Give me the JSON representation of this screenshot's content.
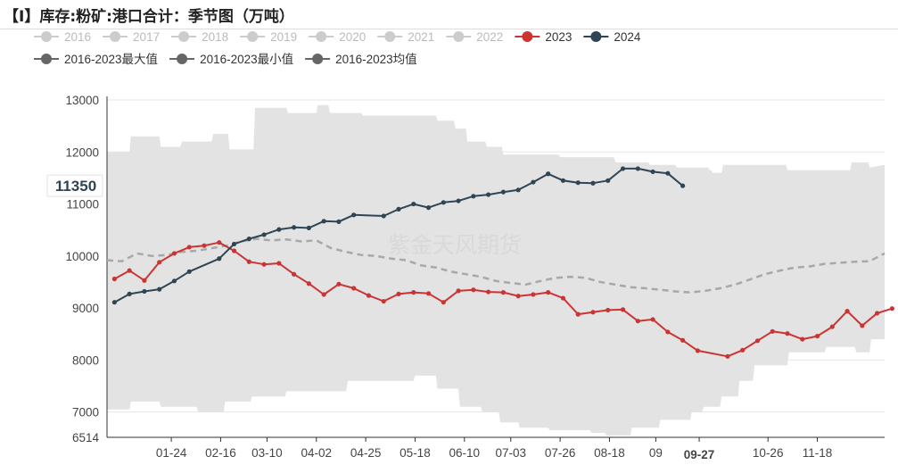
{
  "title": "【I】库存:粉矿:港口合计：季节图（万吨）",
  "watermark": "紫金天风期货",
  "legend": [
    {
      "label": "2016",
      "color": "#cccccc",
      "text_color": "#bbbbbb"
    },
    {
      "label": "2017",
      "color": "#cccccc",
      "text_color": "#bbbbbb"
    },
    {
      "label": "2018",
      "color": "#cccccc",
      "text_color": "#bbbbbb"
    },
    {
      "label": "2019",
      "color": "#cccccc",
      "text_color": "#bbbbbb"
    },
    {
      "label": "2020",
      "color": "#cccccc",
      "text_color": "#bbbbbb"
    },
    {
      "label": "2021",
      "color": "#cccccc",
      "text_color": "#bbbbbb"
    },
    {
      "label": "2022",
      "color": "#cccccc",
      "text_color": "#bbbbbb"
    },
    {
      "label": "2023",
      "color": "#cc3333",
      "text_color": "#333333"
    },
    {
      "label": "2024",
      "color": "#2f4554",
      "text_color": "#333333"
    },
    {
      "label": "2016-2023最大值",
      "color": "#666666",
      "text_color": "#333333"
    },
    {
      "label": "2016-2023最小值",
      "color": "#666666",
      "text_color": "#333333"
    },
    {
      "label": "2016-2023均值",
      "color": "#666666",
      "text_color": "#333333"
    }
  ],
  "chart_data": {
    "type": "line",
    "title": "【I】库存:粉矿:港口合计：季节图（万吨）",
    "ylim": [
      6514,
      13000
    ],
    "y_ticks": [
      6514,
      7000,
      8000,
      9000,
      10000,
      11000,
      12000,
      13000
    ],
    "x_ticks": [
      "01-24",
      "02-16",
      "03-10",
      "04-02",
      "04-25",
      "05-18",
      "06-10",
      "07-03",
      "07-26",
      "08-18",
      "09",
      "09-27",
      "10-26",
      "11-18"
    ],
    "x_tick_weeks": [
      4.3,
      7.6,
      10.7,
      14.0,
      17.3,
      20.6,
      23.9,
      27.0,
      30.3,
      33.6,
      36.7,
      39.6,
      44.2,
      47.5
    ],
    "highlight_tick": "09-27",
    "x_range_weeks": [
      0,
      52
    ],
    "y_marker": {
      "value": 11350,
      "label": "11350"
    },
    "series": [
      {
        "name": "2016-2023最大值",
        "weeks": [
          0,
          1.5,
          1.6,
          3.5,
          3.6,
          4.9,
          5.0,
          7.0,
          7.1,
          8.1,
          8.2,
          9.8,
          9.9,
          12.0,
          12.1,
          14.0,
          14.1,
          14.8,
          14.9,
          17.0,
          17.1,
          22.0,
          22.1,
          23.2,
          23.3,
          24.0,
          24.1,
          25.3,
          25.4,
          26.4,
          26.5,
          30.2,
          30.3,
          33.9,
          34.0,
          36.2,
          36.3,
          38.0,
          38.1,
          40.2,
          40.3,
          40.4,
          40.5,
          41.1,
          41.2,
          43.2,
          43.3,
          45.4,
          45.5,
          47.4,
          47.5,
          49.7,
          49.8,
          50.9,
          51.0,
          52.0
        ],
        "values": [
          12000,
          12000,
          12300,
          12300,
          12100,
          12100,
          12200,
          12200,
          12350,
          12350,
          12050,
          12050,
          12850,
          12850,
          12750,
          12750,
          12900,
          12900,
          12750,
          12750,
          12700,
          12700,
          12600,
          12600,
          12450,
          12450,
          12200,
          12200,
          12100,
          12100,
          11950,
          11950,
          11900,
          11900,
          11800,
          11800,
          11750,
          11750,
          11700,
          11700,
          11650,
          11650,
          11600,
          11600,
          11750,
          11750,
          11750,
          11750,
          11650,
          11650,
          11650,
          11650,
          11800,
          11800,
          11700,
          11750
        ]
      },
      {
        "name": "2016-2023最小值",
        "weeks": [
          0,
          1.5,
          1.6,
          3.5,
          3.6,
          6.0,
          6.1,
          7.8,
          7.9,
          9.6,
          9.7,
          11.9,
          12.0,
          16.0,
          16.1,
          20.5,
          20.6,
          22.0,
          22.1,
          23.5,
          23.6,
          25.0,
          25.1,
          26.2,
          26.3,
          27.5,
          27.6,
          29.5,
          29.6,
          32.3,
          32.4,
          33.3,
          33.4,
          35.0,
          35.1,
          36.9,
          37.0,
          39.0,
          39.1,
          39.8,
          39.9,
          41.0,
          41.1,
          42.2,
          42.3,
          43.2,
          43.3,
          45.5,
          45.6,
          48.0,
          48.1,
          50.0,
          50.1,
          51.0,
          51.1,
          52.0
        ],
        "values": [
          7050,
          7050,
          7200,
          7200,
          7100,
          7100,
          7000,
          7000,
          7200,
          7200,
          7300,
          7300,
          7400,
          7400,
          7600,
          7600,
          7700,
          7700,
          7450,
          7450,
          7100,
          7100,
          7000,
          7000,
          6800,
          6800,
          6700,
          6700,
          6650,
          6650,
          6600,
          6600,
          6550,
          6550,
          6700,
          6700,
          6850,
          6850,
          7000,
          7000,
          7100,
          7100,
          7300,
          7300,
          7600,
          7600,
          7900,
          7900,
          8150,
          8150,
          8250,
          8250,
          8150,
          8150,
          8400,
          8400
        ]
      },
      {
        "name": "2016-2023均值",
        "weeks": [
          0,
          1,
          2,
          3,
          4,
          5,
          6,
          7,
          8,
          9,
          10,
          11,
          12,
          13,
          14,
          15,
          16,
          17,
          18,
          19,
          20,
          21,
          22,
          23,
          24,
          25,
          26,
          27,
          28,
          29,
          30,
          31,
          32,
          33,
          34,
          35,
          36,
          37,
          38,
          39,
          40,
          41,
          42,
          43,
          44,
          45,
          46,
          47,
          48,
          49,
          50,
          51,
          52
        ],
        "values": [
          9920,
          9900,
          10050,
          10000,
          10020,
          10080,
          10100,
          10150,
          10200,
          10280,
          10330,
          10300,
          10320,
          10280,
          10300,
          10150,
          10080,
          10020,
          10000,
          9950,
          9920,
          9820,
          9780,
          9700,
          9650,
          9600,
          9520,
          9480,
          9450,
          9520,
          9580,
          9600,
          9580,
          9500,
          9450,
          9400,
          9380,
          9350,
          9320,
          9300,
          9330,
          9380,
          9450,
          9550,
          9650,
          9720,
          9780,
          9800,
          9850,
          9870,
          9890,
          9900,
          10050
        ]
      },
      {
        "name": "2023",
        "weeks": [
          0.5,
          1.5,
          2.5,
          3.5,
          4.5,
          5.5,
          6.5,
          7.5,
          8.5,
          9.5,
          10.5,
          11.5,
          12.5,
          13.5,
          14.5,
          15.5,
          16.5,
          17.5,
          18.5,
          19.5,
          20.5,
          21.5,
          22.5,
          23.5,
          24.5,
          25.5,
          26.5,
          27.5,
          28.5,
          29.5,
          30.5,
          31.5,
          32.5,
          33.5,
          34.5,
          35.5,
          36.5,
          37.5,
          38.5,
          39.5,
          41.5,
          42.5,
          43.5,
          44.5,
          45.5,
          46.5,
          47.5,
          48.5,
          49.5,
          50.5,
          51.5,
          52.5
        ],
        "values": [
          9560,
          9720,
          9530,
          9880,
          10050,
          10170,
          10200,
          10260,
          10100,
          9890,
          9840,
          9860,
          9650,
          9470,
          9260,
          9460,
          9380,
          9240,
          9130,
          9270,
          9300,
          9280,
          9110,
          9330,
          9350,
          9310,
          9300,
          9230,
          9260,
          9300,
          9190,
          8880,
          8920,
          8960,
          8970,
          8750,
          8780,
          8540,
          8380,
          8180,
          8070,
          8190,
          8370,
          8550,
          8510,
          8400,
          8460,
          8640,
          8940,
          8660,
          8900,
          8990
        ]
      },
      {
        "name": "2024",
        "weeks": [
          0.5,
          1.5,
          2.5,
          3.5,
          4.5,
          5.5,
          7.5,
          8.5,
          9.5,
          10.5,
          11.5,
          12.5,
          13.5,
          14.5,
          15.5,
          16.5,
          18.5,
          19.5,
          20.5,
          21.5,
          22.5,
          23.5,
          24.5,
          25.5,
          26.5,
          27.5,
          28.5,
          29.5,
          30.5,
          31.5,
          32.5,
          33.5,
          34.5,
          35.5,
          36.5,
          37.5,
          38.5
        ],
        "values": [
          9110,
          9270,
          9320,
          9360,
          9520,
          9700,
          9950,
          10230,
          10330,
          10410,
          10510,
          10550,
          10540,
          10670,
          10660,
          10790,
          10770,
          10900,
          11000,
          10930,
          11030,
          11060,
          11150,
          11180,
          11230,
          11270,
          11420,
          11580,
          11450,
          11410,
          11400,
          11450,
          11680,
          11680,
          11620,
          11590,
          11350
        ]
      }
    ]
  }
}
